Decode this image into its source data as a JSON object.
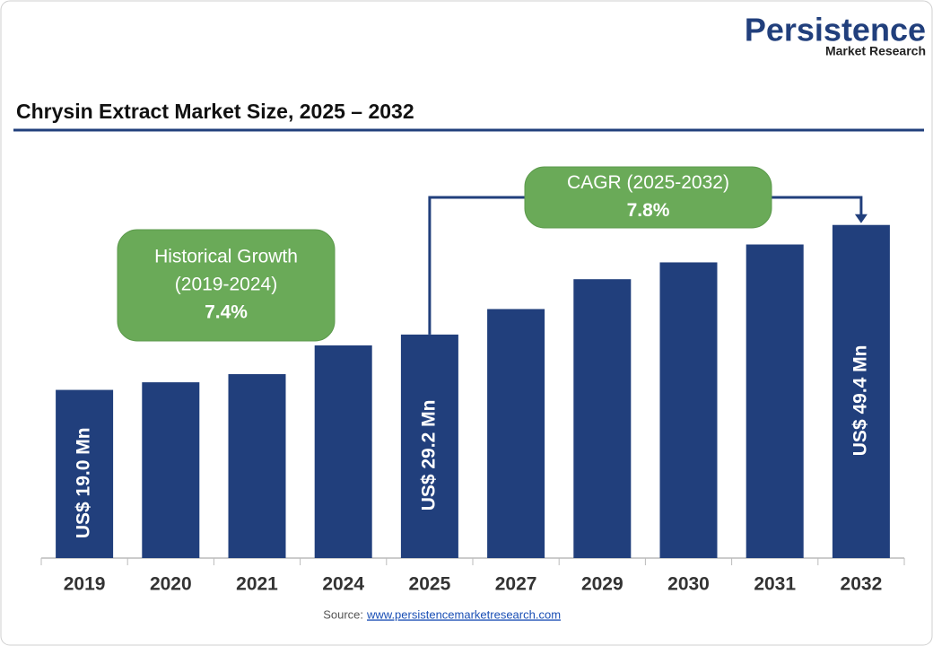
{
  "brand": {
    "name": "Persistence",
    "tagline": "Market Research"
  },
  "chart_data": {
    "type": "bar",
    "title": "Chrysin Extract Market Size, 2025 – 2032",
    "categories": [
      "2019",
      "2020",
      "2021",
      "2024",
      "2025",
      "2027",
      "2029",
      "2030",
      "2031",
      "2032"
    ],
    "values": [
      19.0,
      20.4,
      21.9,
      27.2,
      29.2,
      33.9,
      39.4,
      42.5,
      45.8,
      49.4
    ],
    "value_labels": [
      "US$ 19.0 Mn",
      null,
      null,
      null,
      "US$ 29.2 Mn",
      null,
      null,
      null,
      null,
      "US$ 49.4 Mn"
    ],
    "color": "#213f7c",
    "ylim": [
      -12,
      52
    ],
    "annotations": {
      "historical": {
        "lines": [
          "Historical Growth",
          "(2019-2024)"
        ],
        "value": "7.4%"
      },
      "cagr": {
        "lines": [
          "CAGR (2025-2032)"
        ],
        "value": "7.8%"
      }
    }
  },
  "source": {
    "label": "Source:",
    "link": "www.persistencemarketresearch.com"
  }
}
